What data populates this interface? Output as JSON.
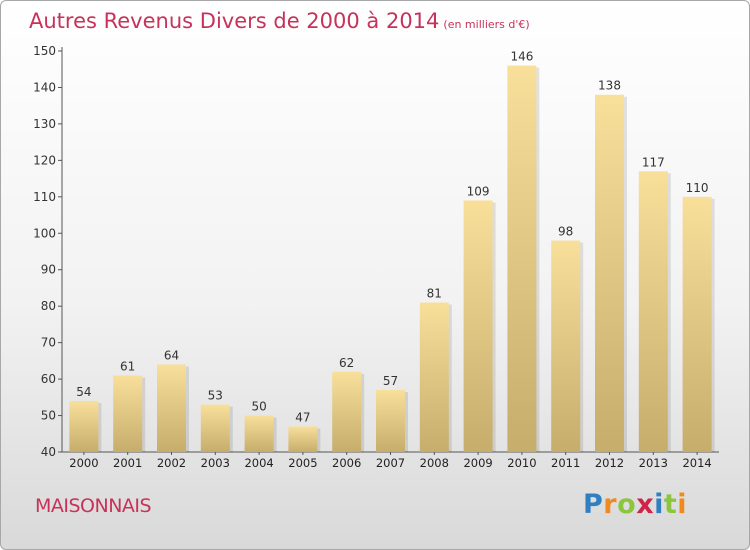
{
  "header": {
    "title": "Autres Revenus Divers de 2000 à 2014",
    "unit": "(en milliers d'€)"
  },
  "footer": {
    "commune": "MAISONNAIS",
    "logo": [
      "P",
      "r",
      "o",
      "x",
      "i",
      "t",
      "i"
    ]
  },
  "colors": {
    "accent": "#c8325a",
    "bar_top": "#f8df9a",
    "bar_bottom": "#c6ad6c",
    "logo": [
      "#2f7fc1",
      "#f08a1c",
      "#8cc63f",
      "#d0234a",
      "#2f7fc1",
      "#8cc63f",
      "#f08a1c"
    ]
  },
  "chart_data": {
    "type": "bar",
    "categories": [
      "2000",
      "2001",
      "2002",
      "2003",
      "2004",
      "2005",
      "2006",
      "2007",
      "2008",
      "2009",
      "2010",
      "2011",
      "2012",
      "2013",
      "2014"
    ],
    "values": [
      54,
      61,
      64,
      53,
      50,
      47,
      62,
      57,
      81,
      109,
      146,
      98,
      138,
      117,
      110
    ],
    "title": "Autres Revenus Divers de 2000 à 2014",
    "ylim": [
      40,
      150
    ],
    "yticks": [
      40,
      50,
      60,
      70,
      80,
      90,
      100,
      110,
      120,
      130,
      140,
      150
    ],
    "grid": false,
    "legend": "none"
  }
}
